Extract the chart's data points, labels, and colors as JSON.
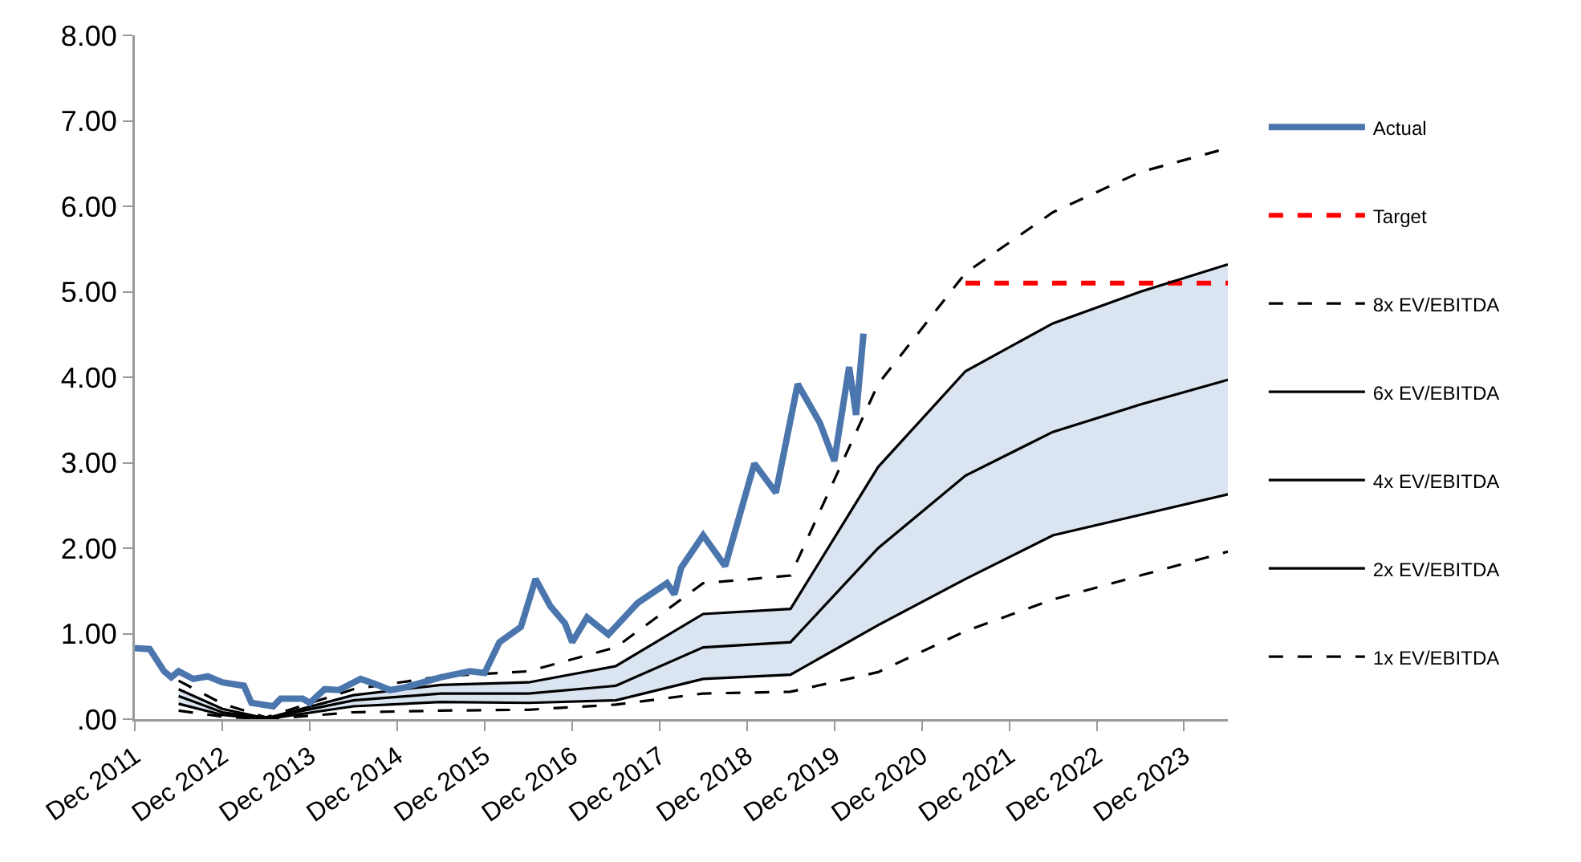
{
  "chart_data": {
    "type": "line",
    "xlim": [
      "2011-12",
      "2024-06"
    ],
    "xticks": [
      {
        "value": "2011-12",
        "label": "Dec 2011"
      },
      {
        "value": "2012-12",
        "label": "Dec 2012"
      },
      {
        "value": "2013-12",
        "label": "Dec 2013"
      },
      {
        "value": "2014-12",
        "label": "Dec 2014"
      },
      {
        "value": "2015-12",
        "label": "Dec 2015"
      },
      {
        "value": "2016-12",
        "label": "Dec 2016"
      },
      {
        "value": "2017-12",
        "label": "Dec 2017"
      },
      {
        "value": "2018-12",
        "label": "Dec 2018"
      },
      {
        "value": "2019-12",
        "label": "Dec 2019"
      },
      {
        "value": "2020-12",
        "label": "Dec 2020"
      },
      {
        "value": "2021-12",
        "label": "Dec 2021"
      },
      {
        "value": "2022-12",
        "label": "Dec 2022"
      },
      {
        "value": "2023-12",
        "label": "Dec 2023"
      }
    ],
    "ylim": [
      0,
      8
    ],
    "yticks": [
      {
        "value": 0,
        "label": ".00"
      },
      {
        "value": 1,
        "label": "1.00"
      },
      {
        "value": 2,
        "label": "2.00"
      },
      {
        "value": 3,
        "label": "3.00"
      },
      {
        "value": 4,
        "label": "4.00"
      },
      {
        "value": 5,
        "label": "5.00"
      },
      {
        "value": 6,
        "label": "6.00"
      },
      {
        "value": 7,
        "label": "7.00"
      },
      {
        "value": 8,
        "label": "8.00"
      }
    ],
    "grid": false,
    "legend": "right",
    "marker": "none",
    "x": [
      "2012-06",
      "2012-12",
      "2013-06",
      "2014-06",
      "2015-06",
      "2016-06",
      "2017-06",
      "2018-06",
      "2019-06",
      "2020-06",
      "2021-06",
      "2022-06",
      "2023-06",
      "2024-06"
    ],
    "series": [
      {
        "name": "Actual",
        "color": "#4a76ad",
        "line_style": "solid",
        "x": [
          "2011-12",
          "2012-02",
          "2012-04",
          "2012-05",
          "2012-06",
          "2012-08",
          "2012-10",
          "2012-12",
          "2013-03",
          "2013-04",
          "2013-07",
          "2013-08",
          "2013-11",
          "2013-12",
          "2014-02",
          "2014-04",
          "2014-07",
          "2014-09",
          "2014-11",
          "2015-01",
          "2015-06",
          "2015-10",
          "2015-12",
          "2016-02",
          "2016-05",
          "2016-07",
          "2016-09",
          "2016-11",
          "2016-12",
          "2017-02",
          "2017-05",
          "2017-09",
          "2018-01",
          "2018-02",
          "2018-03",
          "2018-06",
          "2018-09",
          "2019-01",
          "2019-04",
          "2019-07",
          "2019-10",
          "2019-12",
          "2020-02",
          "2020-03",
          "2020-04"
        ],
        "values": [
          0.83,
          0.82,
          0.56,
          0.49,
          0.56,
          0.47,
          0.5,
          0.43,
          0.39,
          0.19,
          0.15,
          0.24,
          0.24,
          0.19,
          0.35,
          0.34,
          0.47,
          0.41,
          0.34,
          0.37,
          0.49,
          0.56,
          0.54,
          0.9,
          1.08,
          1.64,
          1.32,
          1.12,
          0.9,
          1.19,
          0.99,
          1.36,
          1.59,
          1.46,
          1.77,
          2.15,
          1.79,
          2.99,
          2.65,
          3.92,
          3.47,
          3.02,
          4.12,
          3.56,
          4.51
        ]
      },
      {
        "name": "Target",
        "color": "#ff0000",
        "line_style": "dashed",
        "x": [
          "2021-06",
          "2024-06"
        ],
        "values": [
          5.1,
          5.1
        ]
      },
      {
        "name": "8x EV/EBITDA",
        "color": "#000000",
        "line_style": "dashed",
        "values": [
          0.45,
          0.18,
          0.02,
          0.35,
          0.5,
          0.56,
          0.84,
          1.59,
          1.68,
          3.92,
          5.22,
          5.93,
          6.4,
          6.68
        ]
      },
      {
        "name": "6x EV/EBITDA",
        "color": "#000000",
        "line_style": "solid",
        "values": [
          0.35,
          0.12,
          0.01,
          0.28,
          0.4,
          0.43,
          0.62,
          1.23,
          1.29,
          2.95,
          4.07,
          4.63,
          5.0,
          5.32
        ]
      },
      {
        "name": "4x EV/EBITDA",
        "color": "#000000",
        "line_style": "solid",
        "values": [
          0.27,
          0.08,
          0.01,
          0.22,
          0.3,
          0.3,
          0.39,
          0.84,
          0.9,
          2.0,
          2.85,
          3.36,
          3.68,
          3.97
        ],
        "lower": [
          0.18,
          0.05,
          0,
          0.15,
          0.2,
          0.19,
          0.22,
          0.47,
          0.52,
          1.1,
          1.64,
          2.15,
          2.39,
          2.63
        ],
        "upper": [
          0.35,
          0.12,
          0.01,
          0.28,
          0.4,
          0.43,
          0.62,
          1.23,
          1.29,
          2.95,
          4.07,
          4.63,
          5.0,
          5.32
        ]
      },
      {
        "name": "2x EV/EBITDA",
        "color": "#000000",
        "line_style": "solid",
        "values": [
          0.18,
          0.05,
          0,
          0.15,
          0.2,
          0.19,
          0.22,
          0.47,
          0.52,
          1.1,
          1.64,
          2.15,
          2.39,
          2.63
        ]
      },
      {
        "name": "1x EV/EBITDA",
        "color": "#000000",
        "line_style": "dashed",
        "values": [
          0.1,
          0.03,
          0,
          0.08,
          0.1,
          0.11,
          0.17,
          0.3,
          0.32,
          0.55,
          1.03,
          1.4,
          1.68,
          1.96
        ]
      }
    ]
  }
}
